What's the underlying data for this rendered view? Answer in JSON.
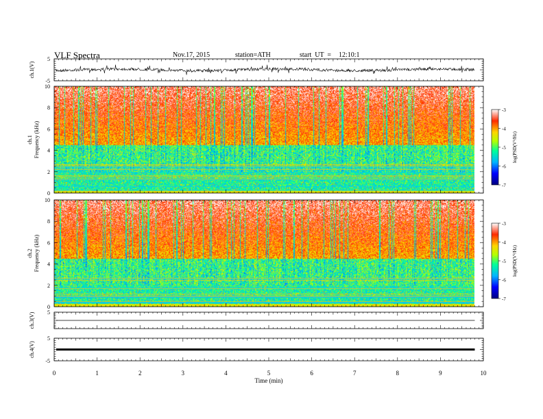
{
  "header": {
    "title": "VLF Spectra",
    "date": "Nov.17, 2015",
    "station": "station=ATH",
    "start_label": "start  UT  =",
    "start_time": "12:10:1"
  },
  "chart_data": [
    {
      "type": "line",
      "panel": "ch1-waveform",
      "ylabel": "ch.1(V)",
      "yticks": [
        "5",
        "-5"
      ],
      "ylim": [
        -5,
        5
      ],
      "xlim": [
        0,
        10
      ],
      "x_data_max": 9.8,
      "note_color": "#000000"
    },
    {
      "type": "heatmap",
      "panel": "ch1-spectrogram",
      "ylabel": "Frequency (kHz)",
      "channel_label": "ch.1",
      "yticks": [
        "0",
        "2",
        "4",
        "6",
        "8",
        "10"
      ],
      "ylim": [
        0,
        10
      ],
      "xlim": [
        0,
        10
      ],
      "x_data_max": 9.8,
      "colorbar": {
        "label": "log(PSD(V²/Hz)",
        "ticks": [
          "-3",
          "-4",
          "-5",
          "-6",
          "-7"
        ],
        "range": [
          -7,
          -3
        ]
      }
    },
    {
      "type": "heatmap",
      "panel": "ch2-spectrogram",
      "ylabel": "Frequency (kHz)",
      "channel_label": "ch.2",
      "yticks": [
        "0",
        "2",
        "4",
        "6",
        "8",
        "10"
      ],
      "ylim": [
        0,
        10
      ],
      "xlim": [
        0,
        10
      ],
      "x_data_max": 9.8,
      "colorbar": {
        "label": "log(PSD(V²/Hz)",
        "ticks": [
          "-3",
          "-4",
          "-5",
          "-6",
          "-7"
        ],
        "range": [
          -7,
          -3
        ]
      }
    },
    {
      "type": "line",
      "panel": "ch3-waveform",
      "ylabel": "ch.3(V)",
      "yticks": [
        "5"
      ],
      "ylim": [
        -5,
        5
      ],
      "xlim": [
        0,
        10
      ],
      "values_flat_at": 0
    },
    {
      "type": "line",
      "panel": "ch4-waveform",
      "ylabel": "ch.4(V)",
      "yticks": [
        "5",
        "-5"
      ],
      "ylim": [
        -5,
        5
      ],
      "xlim": [
        0,
        10
      ],
      "values_flat_at": 0
    }
  ],
  "xaxis": {
    "label": "Time  (min)",
    "ticks": [
      "0",
      "1",
      "2",
      "3",
      "4",
      "5",
      "6",
      "7",
      "8",
      "9",
      "10"
    ]
  },
  "colors": {
    "low": "#00007f",
    "mid": "#00ff7f",
    "high": "#ff0000",
    "line": "#000000"
  }
}
